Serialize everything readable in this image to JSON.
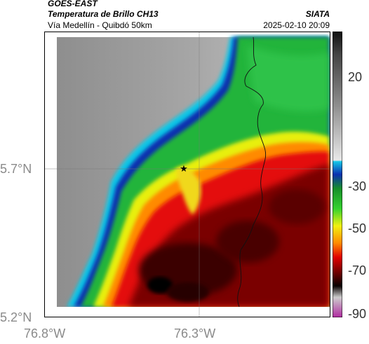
{
  "header": {
    "satellite": "GOES-EAST",
    "product": "Temperatura de Brillo CH13",
    "region": "Vía Medellín - Quibdó 50km",
    "agency": "SIATA",
    "datetime": "2025-02-10 20:09"
  },
  "map": {
    "lat_labels": [
      "5.7°N",
      "5.2°N"
    ],
    "lon_labels": [
      "76.8°W",
      "76.3°W"
    ],
    "marker": "star-marker"
  },
  "colorbar": {
    "ticks": [
      "20",
      "-30",
      "-50",
      "-70",
      "-90"
    ],
    "colors": {
      "warm": "#1b1b1b",
      "gray_mid": "#9a9a9a",
      "gray_light": "#d0d0d0",
      "cyan": "#00c8e8",
      "blue": "#0033aa",
      "green": "#22bb22",
      "yellow": "#f2f200",
      "orange": "#ff7a00",
      "red": "#e00000",
      "dark_red": "#5a0000",
      "black": "#0a0000",
      "magenta": "#b02aa0"
    }
  }
}
